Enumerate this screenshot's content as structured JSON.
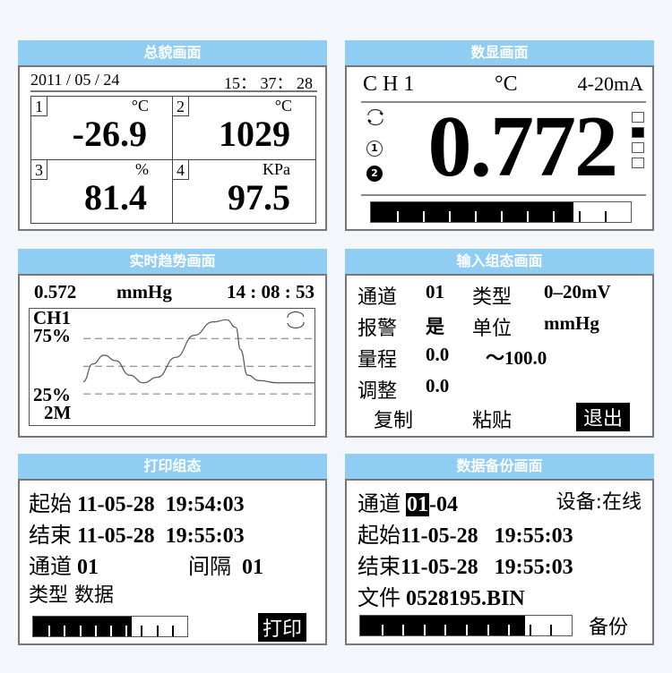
{
  "overview": {
    "title": "总貌画面",
    "date": "2011 / 05 / 24",
    "time": "15： 37： 28",
    "cells": [
      {
        "no": "1",
        "unit": "°C",
        "value": "-26.9"
      },
      {
        "no": "2",
        "unit": "°C",
        "value": "1029"
      },
      {
        "no": "3",
        "unit": "%",
        "value": "81.4"
      },
      {
        "no": "4",
        "unit": "KPa",
        "value": "97.5"
      }
    ]
  },
  "digital": {
    "title": "数显画面",
    "channel": "C H 1",
    "unit": "°C",
    "signal": "4-20mA",
    "value": "0.772",
    "cycle_icon": "cycle-icon",
    "alarm1": "1",
    "alarm2": "2",
    "indicators": [
      false,
      true,
      false,
      false
    ],
    "progress": 0.78
  },
  "trend": {
    "title": "实时趋势画面",
    "value": "0.572",
    "unit": "mmHg",
    "time": "14 : 08 : 53",
    "channel": "CH1",
    "upper": "75%",
    "lower": "25%",
    "span": "2M",
    "chart_data": {
      "type": "line",
      "ylim": [
        0,
        100
      ],
      "gridlines": [
        75,
        50,
        25
      ],
      "points": [
        [
          0,
          36
        ],
        [
          4,
          52
        ],
        [
          9,
          60
        ],
        [
          14,
          55
        ],
        [
          20,
          42
        ],
        [
          26,
          35
        ],
        [
          32,
          40
        ],
        [
          40,
          58
        ],
        [
          48,
          78
        ],
        [
          56,
          90
        ],
        [
          62,
          92
        ],
        [
          66,
          85
        ],
        [
          68,
          65
        ],
        [
          71,
          42
        ],
        [
          76,
          37
        ],
        [
          84,
          35
        ],
        [
          100,
          35
        ]
      ]
    }
  },
  "input": {
    "title": "输入组态画面",
    "rows": [
      [
        "通道",
        "01",
        "类型",
        "0–20mV"
      ],
      [
        "报警",
        "是",
        "单位",
        "mmHg"
      ],
      [
        "量程",
        "0.0",
        "～100.0",
        ""
      ],
      [
        "调整",
        "0.0",
        "",
        ""
      ]
    ],
    "copy": "复制",
    "paste": "粘贴",
    "exit": "退出"
  },
  "print": {
    "title": "打印组态",
    "start_label": "起始",
    "start_date": "11-05-28",
    "start_time": "19:54:03",
    "end_label": "结束",
    "end_date": "11-05-28",
    "end_time": "19:55:03",
    "channel_label": "通道",
    "channel": "01",
    "interval_label": "间隔",
    "interval": "01",
    "type_label": "类型",
    "type": "数据",
    "progress": 0.64,
    "print_button": "打印"
  },
  "backup": {
    "title": "数据备份画面",
    "channel_label": "通道",
    "channel_from": "01",
    "channel_to": "-04",
    "device": "设备:在线",
    "start_label": "起始",
    "start_date": "11-05-28",
    "start_time": "19:55:03",
    "end_label": "结束",
    "end_date": "11-05-28",
    "end_time": "19:55:03",
    "file_label": "文件",
    "file": "0528195.BIN",
    "progress": 0.78,
    "backup_button": "备份"
  }
}
